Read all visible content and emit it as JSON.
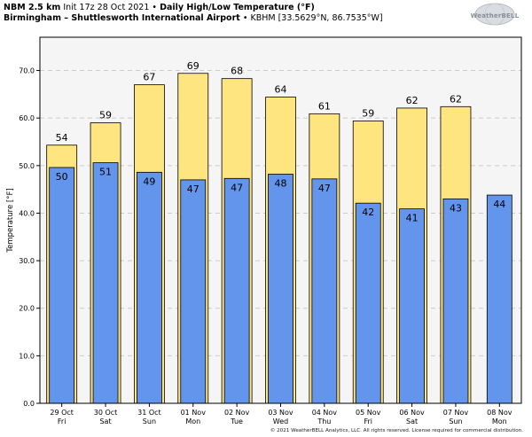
{
  "header": {
    "model": "NBM 2.5 km",
    "init": "Init 17z 28 Oct 2021",
    "separator": "•",
    "product": "Daily High/Low Temperature (°F)",
    "location": "Birmingham – Shuttlesworth International Airport",
    "station": "KBHM [33.5629°N, 86.7535°W]"
  },
  "logo": {
    "text": "WeatherBELL"
  },
  "copyright": "© 2021 WeatherBELL Analytics, LLC. All rights reserved. License required for commercial distribution.",
  "colors": {
    "high": "#ffe57f",
    "low": "#6495ed",
    "plot_bg": "#f5f5f5",
    "grid": "#cccccc"
  },
  "chart_data": {
    "type": "bar",
    "ylabel": "Temperature [°F]",
    "ylim": [
      0,
      77
    ],
    "yticks": [
      0,
      10,
      20,
      30,
      40,
      50,
      60,
      70
    ],
    "ytick_labels": [
      "0.0",
      "10.0",
      "20.0",
      "30.0",
      "40.0",
      "50.0",
      "60.0",
      "70.0"
    ],
    "grid": true,
    "categories": [
      {
        "date": "29 Oct",
        "day": "Fri"
      },
      {
        "date": "30 Oct",
        "day": "Sat"
      },
      {
        "date": "31 Oct",
        "day": "Sun"
      },
      {
        "date": "01 Nov",
        "day": "Mon"
      },
      {
        "date": "02 Nov",
        "day": "Tue"
      },
      {
        "date": "03 Nov",
        "day": "Wed"
      },
      {
        "date": "04 Nov",
        "day": "Thu"
      },
      {
        "date": "05 Nov",
        "day": "Fri"
      },
      {
        "date": "06 Nov",
        "day": "Sat"
      },
      {
        "date": "07 Nov",
        "day": "Sun"
      },
      {
        "date": "08 Nov",
        "day": "Mon"
      }
    ],
    "series": [
      {
        "key": "high",
        "values": [
          54.3,
          59.0,
          67.0,
          69.4,
          68.3,
          64.4,
          60.9,
          59.4,
          62.1,
          62.4,
          null
        ],
        "labels": [
          "54",
          "59",
          "67",
          "69",
          "68",
          "64",
          "61",
          "59",
          "62",
          "62",
          ""
        ]
      },
      {
        "key": "low",
        "values": [
          49.6,
          50.6,
          48.6,
          47.0,
          47.3,
          48.2,
          47.2,
          42.1,
          40.9,
          43.0,
          43.8
        ],
        "labels": [
          "50",
          "51",
          "49",
          "47",
          "47",
          "48",
          "47",
          "42",
          "41",
          "43",
          "44"
        ]
      }
    ]
  }
}
